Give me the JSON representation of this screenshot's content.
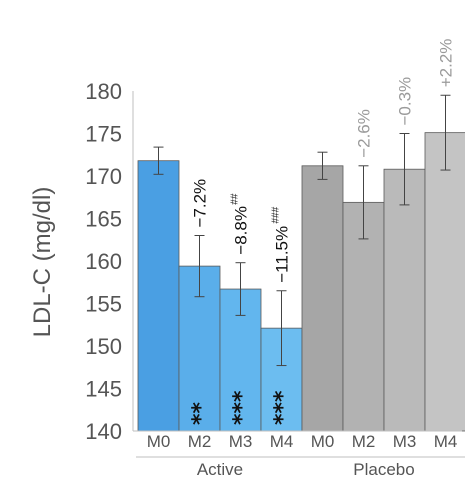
{
  "chart_data": {
    "type": "bar",
    "ylabel": "LDL-C (mg/dl)",
    "ylim": [
      140,
      180
    ],
    "yticks": [
      "140",
      "145",
      "150",
      "155",
      "160",
      "165",
      "170",
      "175",
      "180"
    ],
    "grid": false,
    "categories": [
      "M0",
      "M2",
      "M3",
      "M4",
      "M0",
      "M2",
      "M3",
      "M4"
    ],
    "groups": [
      {
        "name": "Active",
        "categories": [
          "M0",
          "M2",
          "M3",
          "M4"
        ],
        "values": [
          171.8,
          159.4,
          156.7,
          152.1
        ],
        "error": [
          1.6,
          3.6,
          3.1,
          4.4
        ],
        "change_labels": [
          "",
          "−7.2%",
          "−8.8%",
          "−11.5%"
        ],
        "hash_labels": [
          "",
          "",
          "##",
          "###"
        ],
        "star_labels": [
          "",
          "**",
          "***",
          "***"
        ],
        "colors": [
          "#4a9fe3",
          "#5aaeea",
          "#62b6ee",
          "#6cbdf0"
        ],
        "label_color": "#111111"
      },
      {
        "name": "Placebo",
        "categories": [
          "M0",
          "M2",
          "M3",
          "M4"
        ],
        "values": [
          171.2,
          166.9,
          170.8,
          175.1
        ],
        "error": [
          1.6,
          4.3,
          4.2,
          4.4
        ],
        "change_labels": [
          "",
          "−2.6%",
          "−0.3%",
          "+2.2%"
        ],
        "hash_labels": [
          "",
          "",
          "",
          ""
        ],
        "star_labels": [
          "",
          "",
          "",
          ""
        ],
        "colors": [
          "#a6a6a6",
          "#b2b2b2",
          "#bababa",
          "#c4c4c4"
        ],
        "label_color": "#9a9a9a"
      }
    ]
  }
}
